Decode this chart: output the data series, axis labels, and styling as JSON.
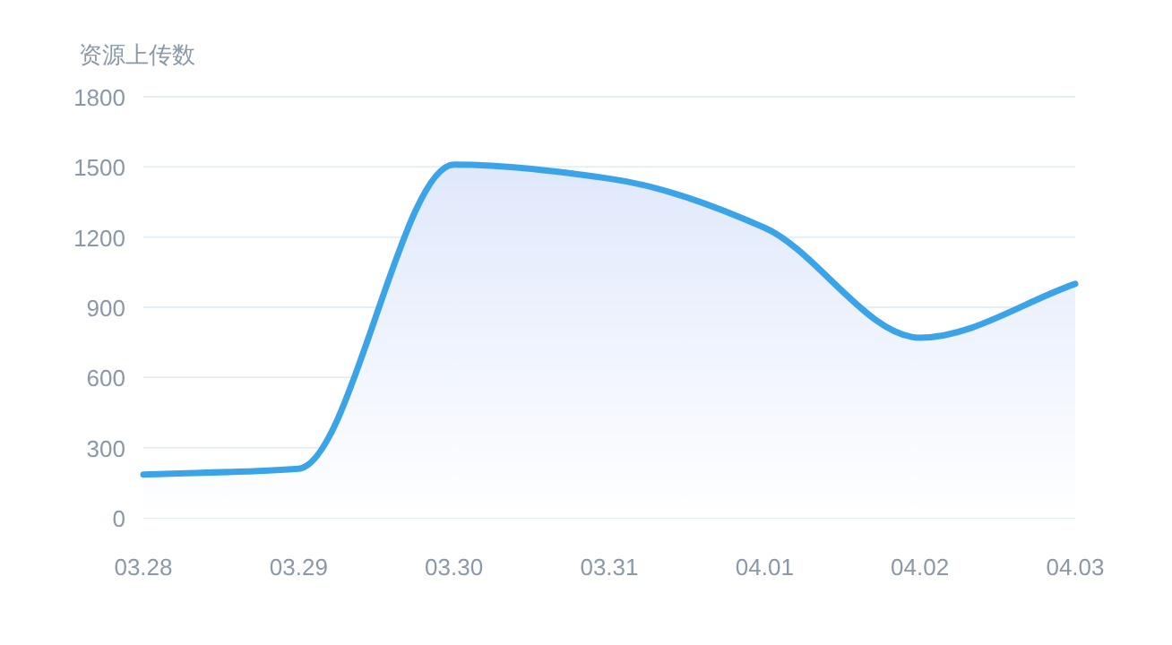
{
  "chart_data": {
    "type": "area",
    "ylabel": "资源上传数",
    "categories": [
      "03.28",
      "03.29",
      "03.30",
      "03.31",
      "04.01",
      "04.02",
      "04.03"
    ],
    "series": [
      {
        "color": "#3ba4e8",
        "values": [
          185,
          210,
          1510,
          1450,
          1240,
          770,
          1000
        ]
      }
    ],
    "ylim": [
      0,
      1800
    ],
    "yticks": [
      0,
      300,
      600,
      900,
      1200,
      1500,
      1800
    ],
    "grid": "y"
  }
}
